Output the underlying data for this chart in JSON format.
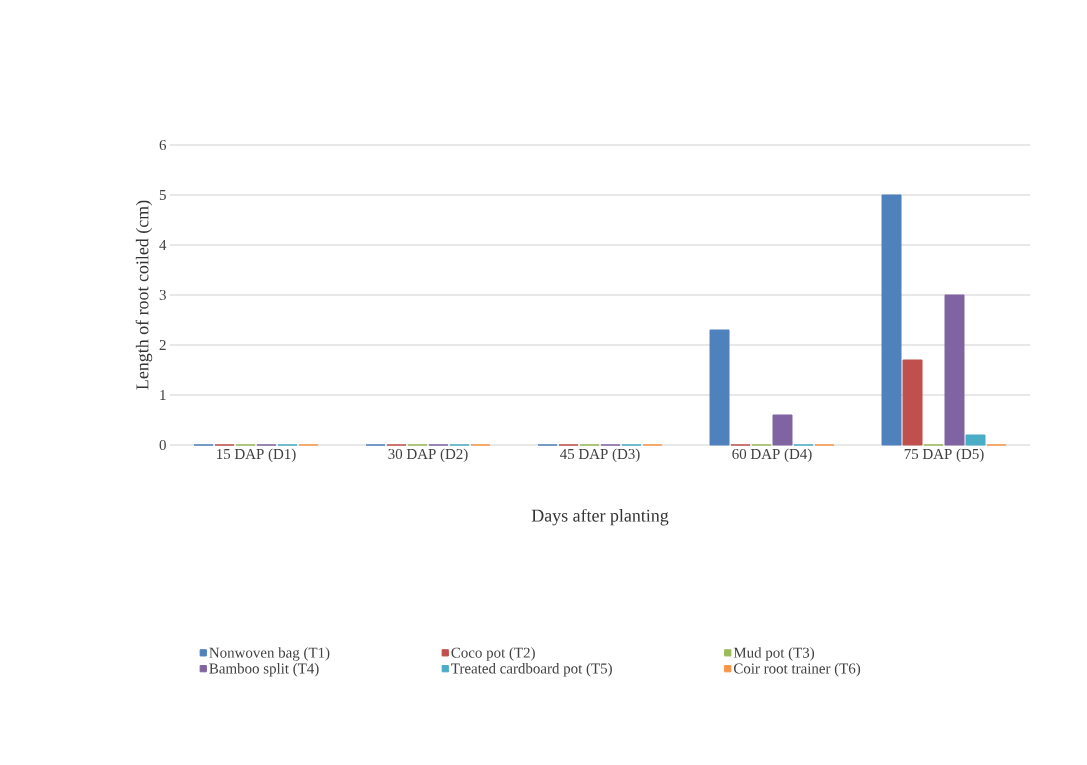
{
  "chart_data": {
    "type": "bar",
    "xlabel": "Days after planting",
    "ylabel": "Length of root coiled (cm)",
    "categories": [
      "15 DAP (D1)",
      "30 DAP (D2)",
      "45 DAP  (D3)",
      "60 DAP  (D4)",
      "75 DAP (D5)"
    ],
    "series": [
      {
        "name": "Nonwoven bag (T1)",
        "color": "#4f81bd",
        "values": [
          0,
          0,
          0,
          2.3,
          5.0
        ]
      },
      {
        "name": "Coco pot (T2)",
        "color": "#c0504d",
        "values": [
          0,
          0,
          0,
          0,
          1.7
        ]
      },
      {
        "name": "Mud pot (T3)",
        "color": "#9bbb59",
        "values": [
          0,
          0,
          0,
          0,
          0
        ]
      },
      {
        "name": "Bamboo split (T4)",
        "color": "#8064a2",
        "values": [
          0,
          0,
          0,
          0.6,
          3.0
        ]
      },
      {
        "name": "Treated cardboard pot (T5)",
        "color": "#4bacc6",
        "values": [
          0,
          0,
          0,
          0,
          0.2
        ]
      },
      {
        "name": "Coir root trainer (T6)",
        "color": "#f79646",
        "values": [
          0,
          0,
          0,
          0,
          0
        ]
      }
    ],
    "ylim": [
      0,
      6
    ],
    "yticks": [
      0,
      1,
      2,
      3,
      4,
      5,
      6
    ],
    "grid": "y",
    "legend": "bottom"
  }
}
